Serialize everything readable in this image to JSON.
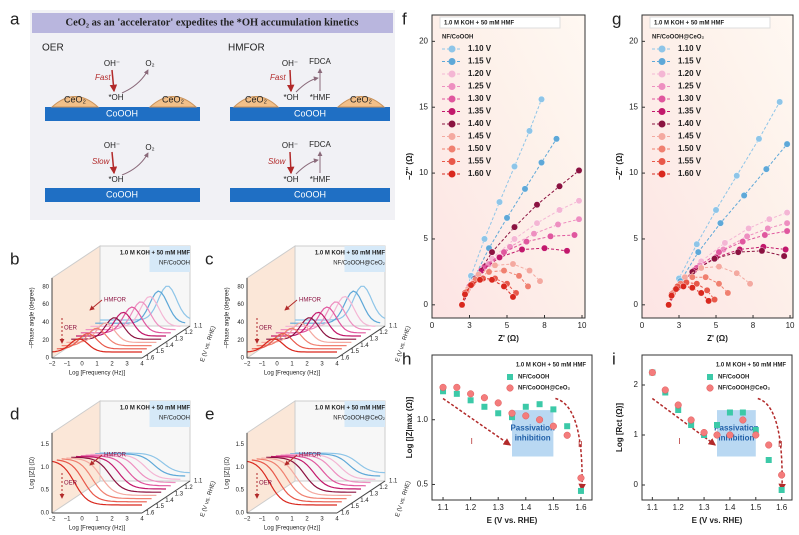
{
  "diagram": {
    "letter": "a",
    "title": "CeO₂ as an 'accelerator' expedites the *OH accumulation kinetics",
    "oer": "OER",
    "hmfor": "HMFOR",
    "oh_ion": "OH⁻",
    "o2": "O₂",
    "fast": "Fast",
    "slow": "Slow",
    "oh_ads": "*OH",
    "ceo2": "CeO₂",
    "cooh": "CoOOH",
    "fdca": "FDCA",
    "hmf_ads": "*HMF"
  },
  "panels_3d": [
    {
      "letter": "b",
      "condition": "1.0 M KOH + 50 mM HMF",
      "sample": "NF/CoOOH",
      "hmfor_label": "HMFOR",
      "oer_label": "OER",
      "ylabel": "−Phase angle (degree)",
      "xlabel": "Log [Frequency (Hz)]",
      "zlabel": "E (V vs. RHE)",
      "yticks": [
        "0",
        "20",
        "40",
        "60",
        "80"
      ],
      "xticks": [
        "−2",
        "−1",
        "0",
        "1",
        "2",
        "3",
        "4"
      ],
      "zticks": [
        "1.1",
        "1.2",
        "1.3",
        "1.4",
        "1.5",
        "1.6"
      ]
    },
    {
      "letter": "c",
      "condition": "1.0 M KOH + 50 mM HMF",
      "sample": "NF/CoOOH@CeO₂",
      "hmfor_label": "HMFOR",
      "oer_label": "OER",
      "ylabel": "−Phase angle (degree)",
      "xlabel": "Log [Frequency (Hz)]",
      "zlabel": "E (V vs. RHE)",
      "yticks": [
        "0",
        "20",
        "40",
        "60",
        "80"
      ],
      "xticks": [
        "−2",
        "−1",
        "0",
        "1",
        "2",
        "3",
        "4"
      ],
      "zticks": [
        "1.1",
        "1.2",
        "1.3",
        "1.4",
        "1.5",
        "1.6"
      ]
    },
    {
      "letter": "d",
      "condition": "1.0 M KOH + 50 mM HMF",
      "sample": "NF/CoOOH",
      "hmfor_label": "HMFOR",
      "oer_label": "OER",
      "ylabel": "Log [|Z|] (Ω)",
      "xlabel": "Log [Frequency (Hz)]",
      "zlabel": "E (V vs. RHE)",
      "yticks": [
        "0.0",
        "0.5",
        "1.0",
        "1.5"
      ],
      "xticks": [
        "−2",
        "−1",
        "0",
        "1",
        "2",
        "3",
        "4"
      ],
      "zticks": [
        "1.1",
        "1.2",
        "1.3",
        "1.4",
        "1.5",
        "1.6"
      ]
    },
    {
      "letter": "e",
      "condition": "1.0 M KOH + 50 mM HMF",
      "sample": "NF/CoOOH@CeO₂",
      "hmfor_label": "HMFOR",
      "oer_label": "OER",
      "ylabel": "Log [|Z|] (Ω)",
      "xlabel": "Log [Frequency (Hz)]",
      "zlabel": "E (V vs. RHE)",
      "yticks": [
        "0.0",
        "0.5",
        "1.0",
        "1.5"
      ],
      "xticks": [
        "−2",
        "−1",
        "0",
        "1",
        "2",
        "3",
        "4"
      ],
      "zticks": [
        "1.1",
        "1.2",
        "1.3",
        "1.4",
        "1.5",
        "1.6"
      ]
    }
  ],
  "chart_data": [
    {
      "type": "line",
      "label": "f",
      "annotations": [
        "1.0 M KOH + 50 mM HMF",
        "NF/CoOOH"
      ],
      "xlabel": "Z' (Ω)",
      "ylabel": "−Z'' (Ω)",
      "xlim": [
        0,
        10.2
      ],
      "xticks": [
        0,
        {
          "value": 2.5,
          "label": "3"
        },
        5,
        {
          "value": 7.5,
          "label": "8"
        },
        10
      ],
      "ylim": [
        -1,
        22
      ],
      "yticks": [
        0,
        5,
        10,
        15,
        20
      ],
      "series": [
        {
          "name": "1.10 V",
          "color": "#8ec5e8",
          "x": [
            2.0,
            2.6,
            3.5,
            4.5,
            5.5,
            6.5,
            7.3
          ],
          "values": [
            0,
            2.2,
            5,
            7.8,
            10.5,
            13.2,
            15.6
          ]
        },
        {
          "name": "1.15 V",
          "color": "#5ea8d8",
          "x": [
            2.0,
            2.8,
            3.8,
            5,
            6.2,
            7.3,
            8.3
          ],
          "values": [
            0,
            2,
            4.3,
            6.6,
            8.8,
            10.8,
            12.6
          ]
        },
        {
          "name": "1.20 V",
          "color": "#f4b6d4",
          "x": [
            2.0,
            2.8,
            4,
            5.5,
            7,
            8.5,
            9.8
          ],
          "values": [
            0,
            1.8,
            3.5,
            5,
            6.2,
            7.2,
            7.9
          ]
        },
        {
          "name": "1.25 V",
          "color": "#ee8fc0",
          "x": [
            2.0,
            2.7,
            3.8,
            5.2,
            6.8,
            8.4,
            9.8
          ],
          "values": [
            0,
            1.6,
            3.1,
            4.4,
            5.4,
            6.1,
            6.5
          ]
        },
        {
          "name": "1.30 V",
          "color": "#e0579e",
          "x": [
            2.0,
            2.6,
            3.5,
            4.8,
            6.3,
            7.9,
            9.5
          ],
          "values": [
            0,
            1.5,
            2.9,
            4,
            4.8,
            5.2,
            5.3
          ]
        },
        {
          "name": "1.35 V",
          "color": "#c2186b",
          "x": [
            2.0,
            2.5,
            3.3,
            4.5,
            6,
            7.5,
            9.0
          ],
          "values": [
            0,
            1.4,
            2.6,
            3.6,
            4.2,
            4.3,
            4.1
          ]
        },
        {
          "name": "1.40 V",
          "color": "#8b1240",
          "x": [
            2.0,
            2.9,
            4,
            5.5,
            7,
            8.5,
            9.8
          ],
          "values": [
            0,
            2,
            4,
            5.9,
            7.6,
            9,
            10.2
          ]
        },
        {
          "name": "1.45 V",
          "color": "#f4a9a0",
          "x": [
            2.0,
            2.4,
            3.1,
            4.2,
            5.4,
            6.5,
            7.2
          ],
          "values": [
            0,
            1.2,
            2.3,
            3,
            3.1,
            2.6,
            1.8
          ]
        },
        {
          "name": "1.50 V",
          "color": "#f08070",
          "x": [
            2.0,
            2.3,
            2.9,
            3.8,
            4.8,
            5.8,
            6.4
          ],
          "values": [
            0,
            1,
            1.9,
            2.5,
            2.6,
            2.2,
            1.4
          ]
        },
        {
          "name": "1.55 V",
          "color": "#e8584a",
          "x": [
            2.0,
            2.2,
            2.7,
            3.4,
            4.2,
            5,
            5.6
          ],
          "values": [
            0,
            0.9,
            1.6,
            2.0,
            2.0,
            1.6,
            0.9
          ]
        },
        {
          "name": "1.60 V",
          "color": "#d9281e",
          "x": [
            2.0,
            2.2,
            2.6,
            3.2,
            4,
            4.8,
            5.4
          ],
          "values": [
            0,
            0.8,
            1.5,
            1.9,
            1.9,
            1.4,
            0.6
          ]
        }
      ]
    },
    {
      "type": "line",
      "label": "g",
      "annotations": [
        "1.0 M KOH + 50 mM HMF",
        "NF/CoOOH@CeO₂"
      ],
      "xlabel": "Z' (Ω)",
      "ylabel": "−Z'' (Ω)",
      "xlim": [
        0,
        10.2
      ],
      "xticks": [
        0,
        {
          "value": 2.5,
          "label": "3"
        },
        5,
        {
          "value": 7.5,
          "label": "8"
        },
        10
      ],
      "ylim": [
        -1,
        22
      ],
      "yticks": [
        0,
        5,
        10,
        15,
        20
      ],
      "series": [
        {
          "name": "1.10 V",
          "color": "#8ec5e8",
          "x": [
            1.8,
            2.5,
            3.7,
            5,
            6.4,
            7.9,
            9.3
          ],
          "values": [
            0,
            2,
            4.6,
            7.2,
            9.8,
            12.6,
            15.4
          ]
        },
        {
          "name": "1.15 V",
          "color": "#5ea8d8",
          "x": [
            1.8,
            2.6,
            3.8,
            5.3,
            6.9,
            8.4,
            9.8
          ],
          "values": [
            0,
            1.8,
            4,
            6.2,
            8.3,
            10.3,
            12.2
          ]
        },
        {
          "name": "1.20 V",
          "color": "#f4b6d4",
          "x": [
            1.8,
            2.7,
            4,
            5.6,
            7.2,
            8.6,
            9.8
          ],
          "values": [
            0,
            1.6,
            3.3,
            4.7,
            5.8,
            6.5,
            7
          ]
        },
        {
          "name": "1.25 V",
          "color": "#ee8fc0",
          "x": [
            1.8,
            2.6,
            3.9,
            5.5,
            7.1,
            8.5,
            9.8
          ],
          "values": [
            0,
            1.5,
            3,
            4.2,
            5.2,
            5.8,
            6.2
          ]
        },
        {
          "name": "1.30 V",
          "color": "#e0579e",
          "x": [
            1.8,
            2.5,
            3.7,
            5.2,
            6.8,
            8.3,
            9.8
          ],
          "values": [
            0,
            1.4,
            2.8,
            4,
            4.8,
            5.3,
            5.6
          ]
        },
        {
          "name": "1.35 V",
          "color": "#c2186b",
          "x": [
            1.8,
            2.4,
            3.5,
            5,
            6.6,
            8.2,
            9.7
          ],
          "values": [
            0,
            1.3,
            2.6,
            3.6,
            4.2,
            4.4,
            4.2
          ]
        },
        {
          "name": "1.40 V",
          "color": "#8b1240",
          "x": [
            1.8,
            2.4,
            3.4,
            4.9,
            6.5,
            8.1,
            9.6
          ],
          "values": [
            0,
            1.3,
            2.5,
            3.5,
            4,
            4.1,
            3.7
          ]
        },
        {
          "name": "1.45 V",
          "color": "#f4a9a0",
          "x": [
            1.8,
            2.2,
            2.9,
            4,
            5.2,
            6.4,
            7.3
          ],
          "values": [
            0,
            1.1,
            2.1,
            2.8,
            2.9,
            2.4,
            1.6
          ]
        },
        {
          "name": "1.50 V",
          "color": "#f08070",
          "x": [
            1.8,
            2.1,
            2.6,
            3.4,
            4.3,
            5.2,
            5.8
          ],
          "values": [
            0,
            0.9,
            1.6,
            2.1,
            2.1,
            1.6,
            0.9
          ]
        },
        {
          "name": "1.55 V",
          "color": "#e8584a",
          "x": [
            1.8,
            2,
            2.4,
            3,
            3.7,
            4.4,
            4.9
          ],
          "values": [
            0,
            0.8,
            1.4,
            1.7,
            1.6,
            1.1,
            0.4
          ]
        },
        {
          "name": "1.60 V",
          "color": "#d9281e",
          "x": [
            1.8,
            2,
            2.3,
            2.8,
            3.4,
            4,
            4.5
          ],
          "values": [
            0,
            0.7,
            1.2,
            1.4,
            1.3,
            0.9,
            0.3
          ]
        }
      ]
    },
    {
      "type": "scatter",
      "label": "h",
      "annotations": [
        "1.0 M KOH + 50 mM HMF",
        "Passivation inhibition",
        "I",
        "II"
      ],
      "xlabel": "E (V vs. RHE)",
      "ylabel": "Log [|Z|max (Ω)]",
      "x": [
        1.1,
        1.15,
        1.2,
        1.25,
        1.3,
        1.35,
        1.4,
        1.45,
        1.5,
        1.55,
        1.6
      ],
      "xlim": [
        1.06,
        1.64
      ],
      "xticks": [
        1.1,
        1.2,
        1.3,
        1.4,
        1.5,
        1.6
      ],
      "ylim": [
        0.38,
        1.5
      ],
      "yticks": [
        0.5,
        {
          "value": 1.0,
          "label": "1.0"
        }
      ],
      "shade": [
        1.35,
        1.5
      ],
      "series": [
        {
          "name": "NF/CoOOH",
          "color": "#3cc9a8",
          "marker": "square",
          "values": [
            1.22,
            1.2,
            1.15,
            1.1,
            1.05,
            1.02,
            1.1,
            1.12,
            1.08,
            0.95,
            0.45
          ]
        },
        {
          "name": "NF/CoOOH@CeO₂",
          "color": "#f47c7c",
          "marker": "circle",
          "values": [
            1.25,
            1.25,
            1.2,
            1.17,
            1.13,
            1.05,
            1.03,
            1.0,
            0.95,
            0.88,
            0.55
          ]
        }
      ]
    },
    {
      "type": "scatter",
      "label": "i",
      "annotations": [
        "1.0 M KOH + 50 mM HMF",
        "Passivation inhibition",
        "I",
        "II"
      ],
      "xlabel": "E (V vs. RHE)",
      "ylabel": "Log [Rct (Ω)]",
      "x": [
        1.1,
        1.15,
        1.2,
        1.25,
        1.3,
        1.35,
        1.4,
        1.45,
        1.5,
        1.55,
        1.6
      ],
      "xlim": [
        1.06,
        1.64
      ],
      "xticks": [
        1.1,
        1.2,
        1.3,
        1.4,
        1.5,
        1.6
      ],
      "ylim": [
        -0.3,
        2.6
      ],
      "yticks": [
        0,
        1,
        2
      ],
      "shade": [
        1.35,
        1.5
      ],
      "series": [
        {
          "name": "NF/CoOOH",
          "color": "#3cc9a8",
          "marker": "square",
          "values": [
            2.25,
            1.85,
            1.5,
            1.2,
            1.0,
            1.2,
            1.45,
            1.45,
            1.1,
            0.5,
            -0.1
          ]
        },
        {
          "name": "NF/CoOOH@CeO₂",
          "color": "#f47c7c",
          "marker": "circle",
          "values": [
            2.25,
            1.9,
            1.6,
            1.3,
            1.05,
            1.0,
            1.0,
            1.3,
            1.0,
            0.8,
            0.2
          ]
        }
      ]
    }
  ]
}
